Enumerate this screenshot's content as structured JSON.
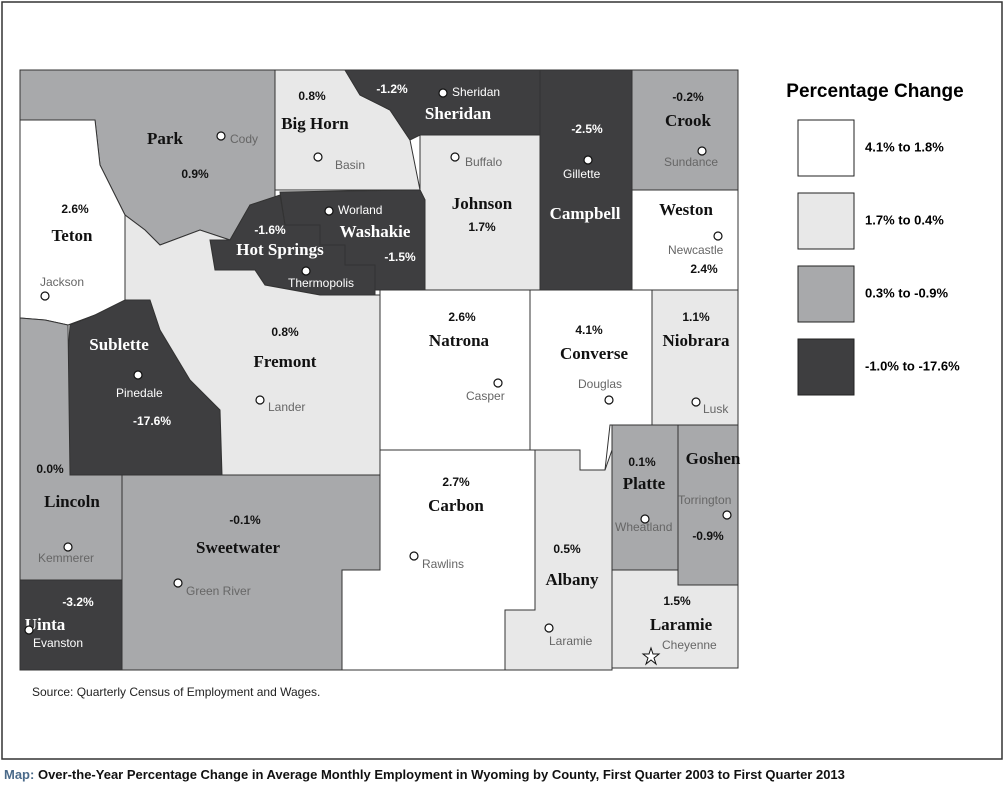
{
  "counties": [
    {
      "name": "Park",
      "change": "0.9%",
      "city": "Cody"
    },
    {
      "name": "Big Horn",
      "change": "0.8%",
      "city": "Basin"
    },
    {
      "name": "Sheridan",
      "change": "-1.2%",
      "city": "Sheridan"
    },
    {
      "name": "Johnson",
      "change": "1.7%",
      "city": "Buffalo"
    },
    {
      "name": "Campbell",
      "change": "-2.5%",
      "city": "Gillette"
    },
    {
      "name": "Crook",
      "change": "-0.2%",
      "city": "Sundance"
    },
    {
      "name": "Weston",
      "change": "2.4%",
      "city": "Newcastle"
    },
    {
      "name": "Teton",
      "change": "2.6%",
      "city": "Jackson"
    },
    {
      "name": "Washakie",
      "change": "-1.5%",
      "city": "Worland"
    },
    {
      "name": "Hot Springs",
      "change": "-1.6%",
      "city": "Thermopolis"
    },
    {
      "name": "Sublette",
      "change": "-17.6%",
      "city": "Pinedale"
    },
    {
      "name": "Fremont",
      "change": "0.8%",
      "city": "Lander"
    },
    {
      "name": "Natrona",
      "change": "2.6%",
      "city": "Casper"
    },
    {
      "name": "Converse",
      "change": "4.1%",
      "city": "Douglas"
    },
    {
      "name": "Niobrara",
      "change": "1.1%",
      "city": "Lusk"
    },
    {
      "name": "Lincoln",
      "change": "0.0%",
      "city": "Kemmerer"
    },
    {
      "name": "Uinta",
      "change": "-3.2%",
      "city": "Evanston"
    },
    {
      "name": "Sweetwater",
      "change": "-0.1%",
      "city": "Green River"
    },
    {
      "name": "Carbon",
      "change": "2.7%",
      "city": "Rawlins"
    },
    {
      "name": "Albany",
      "change": "0.5%",
      "city": "Laramie"
    },
    {
      "name": "Platte",
      "change": "0.1%",
      "city": "Wheatland"
    },
    {
      "name": "Goshen",
      "change": "-0.9%",
      "city": "Torrington"
    },
    {
      "name": "Laramie",
      "change": "1.5%",
      "city": "Cheyenne"
    }
  ],
  "legend": {
    "title": "Percentage Change",
    "items": [
      "4.1% to  1.8%",
      "1.7% to 0.4%",
      "0.3% to -0.9%",
      "-1.0% to -17.6%"
    ]
  },
  "source": "Source: Quarterly Census of Employment and Wages.",
  "caption": {
    "label": "Map:",
    "text": "Over-the-Year Percentage Change in Average Monthly Employment in Wyoming by County, First Quarter 2003 to First Quarter 2013"
  }
}
